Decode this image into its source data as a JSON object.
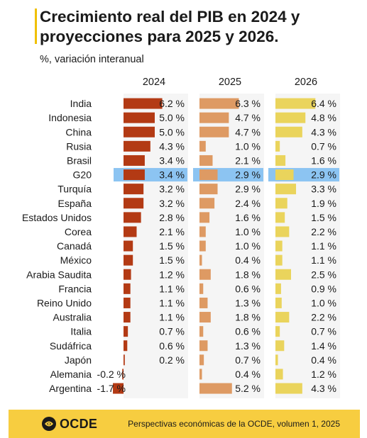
{
  "header": {
    "title": "Crecimiento real del PIB en 2024 y proyecciones para 2025 y 2026.",
    "subtitle": "%, variación interanual"
  },
  "footer": {
    "logo_text": "OCDE",
    "source": "Perspectivas económicas de la OCDE, volumen 1, 2025"
  },
  "colors": {
    "2024": "#b33a14",
    "2025": "#de9a63",
    "2026": "#ead45c",
    "highlight": "#8cc4f2",
    "footer": "#f7cd40"
  },
  "chart_data": {
    "type": "bar",
    "title": "Crecimiento real del PIB en 2024 y proyecciones para 2025 y 2026.",
    "subtitle": "%, variación interanual",
    "categories": [
      "India",
      "Indonesia",
      "China",
      "Rusia",
      "Brasil",
      "G20",
      "Turquía",
      "España",
      "Estados Unidos",
      "Corea",
      "Canadá",
      "México",
      "Arabia Saudita",
      "Francia",
      "Reino Unido",
      "Australia",
      "Italia",
      "Sudáfrica",
      "Japón",
      "Alemania",
      "Argentina"
    ],
    "highlight_category": "G20",
    "series": [
      {
        "name": "2024",
        "values": [
          6.2,
          5.0,
          5.0,
          4.3,
          3.4,
          3.4,
          3.2,
          3.2,
          2.8,
          2.1,
          1.5,
          1.5,
          1.2,
          1.1,
          1.1,
          1.1,
          0.7,
          0.6,
          0.2,
          -0.2,
          -1.7
        ],
        "labels": [
          "6.2 %",
          "5.0 %",
          "5.0 %",
          "4.3 %",
          "3.4 %",
          "3.4 %",
          "3.2 %",
          "3.2 %",
          "2.8 %",
          "2.1 %",
          "1.5 %",
          "1.5 %",
          "1.2 %",
          "1.1 %",
          "1.1 %",
          "1.1 %",
          "0.7 %",
          "0.6 %",
          "0.2 %",
          "-0.2 %",
          "-1.7 %"
        ]
      },
      {
        "name": "2025",
        "values": [
          6.3,
          4.7,
          4.7,
          1.0,
          2.1,
          2.9,
          2.9,
          2.4,
          1.6,
          1.0,
          1.0,
          0.4,
          1.8,
          0.6,
          1.3,
          1.8,
          0.6,
          1.3,
          0.7,
          0.4,
          5.2
        ],
        "labels": [
          "6.3 %",
          "4.7 %",
          "4.7 %",
          "1.0 %",
          "2.1 %",
          "2.9 %",
          "2.9 %",
          "2.4 %",
          "1.6 %",
          "1.0 %",
          "1.0 %",
          "0.4 %",
          "1.8 %",
          "0.6 %",
          "1.3 %",
          "1.8 %",
          "0.6 %",
          "1.3 %",
          "0.7 %",
          "0.4 %",
          "5.2 %"
        ]
      },
      {
        "name": "2026",
        "values": [
          6.4,
          4.8,
          4.3,
          0.7,
          1.6,
          2.9,
          3.3,
          1.9,
          1.5,
          2.2,
          1.1,
          1.1,
          2.5,
          0.9,
          1.0,
          2.2,
          0.7,
          1.4,
          0.4,
          1.2,
          4.3
        ],
        "labels": [
          "6.4 %",
          "4.8 %",
          "4.3 %",
          "0.7 %",
          "1.6 %",
          "2.9 %",
          "3.3 %",
          "1.9 %",
          "1.5 %",
          "2.2 %",
          "1.1 %",
          "1.1 %",
          "2.5 %",
          "0.9 %",
          "1.0 %",
          "2.2 %",
          "0.7 %",
          "1.4 %",
          "0.4 %",
          "1.2 %",
          "4.3 %"
        ]
      }
    ]
  }
}
